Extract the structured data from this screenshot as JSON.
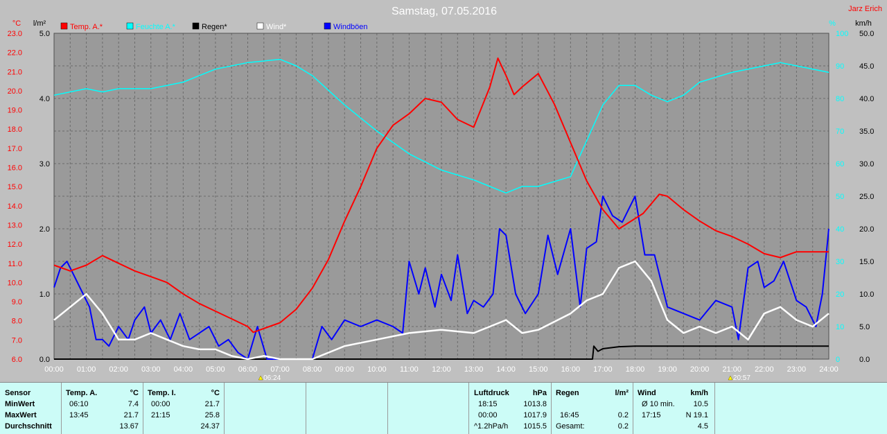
{
  "title": "Samstag, 07.05.2016",
  "author": "Jarz Erich",
  "units": {
    "left1": "°C",
    "left2": "l/m²",
    "right1": "%",
    "right2": "km/h"
  },
  "legend": [
    {
      "label": "Temp. A.*",
      "color": "#ff0000"
    },
    {
      "label": "Feuchte A.*",
      "color": "#00ffff"
    },
    {
      "label": "Regen*",
      "color": "#000000"
    },
    {
      "label": "Wind*",
      "color": "#ffffff"
    },
    {
      "label": "Windböen",
      "color": "#0000ff"
    }
  ],
  "markers": {
    "sunrise": "06:24",
    "sunset": "20:57"
  },
  "chart_data": {
    "type": "line",
    "title": "Samstag, 07.05.2016",
    "x_ticks": [
      "00:00",
      "01:00",
      "02:00",
      "03:00",
      "04:00",
      "05:00",
      "06:00",
      "07:00",
      "08:00",
      "09:00",
      "10:00",
      "11:00",
      "12:00",
      "13:00",
      "14:00",
      "15:00",
      "16:00",
      "17:00",
      "18:00",
      "19:00",
      "20:00",
      "21:00",
      "22:00",
      "23:00",
      "24:00"
    ],
    "axes": {
      "temp_c": {
        "min": 6.0,
        "max": 23.0,
        "ticks": [
          "23.0",
          "22.0",
          "21.0",
          "20.0",
          "19.0",
          "18.0",
          "17.0",
          "16.0",
          "15.0",
          "14.0",
          "13.0",
          "12.0",
          "11.0",
          "10.0",
          "9.0",
          "8.0",
          "7.0",
          "6.0"
        ]
      },
      "rain_lm2": {
        "min": 0,
        "max": 5,
        "ticks": [
          "5.0",
          "4.0",
          "3.0",
          "2.0",
          "1.0",
          "0.0"
        ]
      },
      "humidity_pct": {
        "min": 0,
        "max": 100,
        "ticks": [
          "100",
          "90",
          "80",
          "70",
          "60",
          "50",
          "40",
          "30",
          "20",
          "10",
          "0"
        ]
      },
      "wind_kmh": {
        "min": 0,
        "max": 50,
        "ticks": [
          "50.0",
          "45.0",
          "40.0",
          "35.0",
          "30.0",
          "25.0",
          "20.0",
          "15.0",
          "10.0",
          "5.0",
          "0.0"
        ]
      }
    },
    "grid": true,
    "series": [
      {
        "name": "Temp. A.*",
        "axis": "temp_c",
        "color": "#ff0000",
        "points": [
          [
            0,
            10.9
          ],
          [
            0.5,
            10.6
          ],
          [
            1,
            10.9
          ],
          [
            1.5,
            11.4
          ],
          [
            2,
            11.0
          ],
          [
            2.5,
            10.6
          ],
          [
            3,
            10.3
          ],
          [
            3.5,
            10.0
          ],
          [
            4,
            9.4
          ],
          [
            4.5,
            8.9
          ],
          [
            5,
            8.5
          ],
          [
            5.5,
            8.1
          ],
          [
            6,
            7.7
          ],
          [
            6.17,
            7.4
          ],
          [
            6.5,
            7.6
          ],
          [
            7,
            7.9
          ],
          [
            7.5,
            8.6
          ],
          [
            8,
            9.7
          ],
          [
            8.5,
            11.2
          ],
          [
            9,
            13.2
          ],
          [
            9.5,
            15.0
          ],
          [
            10,
            17.0
          ],
          [
            10.5,
            18.2
          ],
          [
            11,
            18.8
          ],
          [
            11.5,
            19.6
          ],
          [
            12,
            19.4
          ],
          [
            12.5,
            18.5
          ],
          [
            13,
            18.1
          ],
          [
            13.5,
            20.2
          ],
          [
            13.75,
            21.7
          ],
          [
            14,
            20.8
          ],
          [
            14.25,
            19.8
          ],
          [
            14.5,
            20.2
          ],
          [
            15,
            20.9
          ],
          [
            15.25,
            20.1
          ],
          [
            15.5,
            19.3
          ],
          [
            16,
            17.3
          ],
          [
            16.5,
            15.3
          ],
          [
            17,
            13.8
          ],
          [
            17.5,
            12.8
          ],
          [
            18.25,
            13.6
          ],
          [
            18.75,
            14.6
          ],
          [
            19,
            14.5
          ],
          [
            19.5,
            13.8
          ],
          [
            20,
            13.2
          ],
          [
            20.5,
            12.7
          ],
          [
            21,
            12.4
          ],
          [
            21.5,
            12.0
          ],
          [
            22,
            11.5
          ],
          [
            22.5,
            11.3
          ],
          [
            23,
            11.6
          ],
          [
            24,
            11.6
          ]
        ]
      },
      {
        "name": "Feuchte A.*",
        "axis": "humidity_pct",
        "color": "#00ffff",
        "points": [
          [
            0,
            81
          ],
          [
            1,
            83
          ],
          [
            1.5,
            82
          ],
          [
            2,
            83
          ],
          [
            3,
            83
          ],
          [
            4,
            85
          ],
          [
            4.5,
            87
          ],
          [
            5,
            89
          ],
          [
            6,
            91
          ],
          [
            7,
            92
          ],
          [
            7.5,
            90
          ],
          [
            8,
            87
          ],
          [
            9,
            78
          ],
          [
            10,
            70
          ],
          [
            11,
            63
          ],
          [
            12,
            58
          ],
          [
            13,
            55
          ],
          [
            14,
            51
          ],
          [
            14.5,
            53
          ],
          [
            15,
            53
          ],
          [
            16,
            56
          ],
          [
            16.5,
            67
          ],
          [
            17,
            78
          ],
          [
            17.5,
            84
          ],
          [
            18,
            84
          ],
          [
            18.5,
            81
          ],
          [
            19,
            79
          ],
          [
            19.5,
            81
          ],
          [
            20,
            85
          ],
          [
            21,
            88
          ],
          [
            22,
            90
          ],
          [
            22.5,
            91
          ],
          [
            23,
            90
          ],
          [
            24,
            88
          ]
        ]
      },
      {
        "name": "Regen*",
        "axis": "rain_lm2",
        "color": "#000000",
        "points": [
          [
            0,
            0
          ],
          [
            16.68,
            0
          ],
          [
            16.72,
            0.2
          ],
          [
            16.85,
            0.12
          ],
          [
            17,
            0.16
          ],
          [
            17.5,
            0.19
          ],
          [
            18,
            0.2
          ],
          [
            24,
            0.2
          ]
        ]
      },
      {
        "name": "Wind*",
        "axis": "wind_kmh",
        "color": "#ffffff",
        "points": [
          [
            0,
            6
          ],
          [
            0.5,
            8
          ],
          [
            1,
            10
          ],
          [
            1.5,
            7
          ],
          [
            2,
            3
          ],
          [
            2.5,
            3
          ],
          [
            3,
            4
          ],
          [
            3.5,
            3
          ],
          [
            4,
            2
          ],
          [
            4.5,
            1.5
          ],
          [
            5,
            1.5
          ],
          [
            5.5,
            0.5
          ],
          [
            6,
            0
          ],
          [
            6.5,
            0.5
          ],
          [
            7,
            0
          ],
          [
            8,
            0
          ],
          [
            8.5,
            1
          ],
          [
            9,
            2
          ],
          [
            10,
            3
          ],
          [
            11,
            4
          ],
          [
            12,
            4.5
          ],
          [
            13,
            4
          ],
          [
            14,
            6
          ],
          [
            14.5,
            4
          ],
          [
            15,
            4.5
          ],
          [
            16,
            7
          ],
          [
            16.5,
            9
          ],
          [
            17,
            10
          ],
          [
            17.5,
            14
          ],
          [
            18,
            15
          ],
          [
            18.5,
            12
          ],
          [
            19,
            6
          ],
          [
            19.5,
            4
          ],
          [
            20,
            5
          ],
          [
            20.5,
            4
          ],
          [
            21,
            5
          ],
          [
            21.5,
            3
          ],
          [
            22,
            7
          ],
          [
            22.5,
            8
          ],
          [
            23,
            6
          ],
          [
            23.5,
            5
          ],
          [
            24,
            7
          ]
        ]
      },
      {
        "name": "Windböen",
        "axis": "wind_kmh",
        "color": "#0000ff",
        "points": [
          [
            0,
            11
          ],
          [
            0.2,
            14
          ],
          [
            0.4,
            15
          ],
          [
            0.6,
            13
          ],
          [
            0.9,
            10
          ],
          [
            1.1,
            8
          ],
          [
            1.3,
            3
          ],
          [
            1.5,
            3
          ],
          [
            1.7,
            2
          ],
          [
            2,
            5
          ],
          [
            2.3,
            3
          ],
          [
            2.5,
            6
          ],
          [
            2.8,
            8
          ],
          [
            3,
            4
          ],
          [
            3.3,
            6
          ],
          [
            3.6,
            3
          ],
          [
            3.9,
            7
          ],
          [
            4.2,
            3
          ],
          [
            4.5,
            4
          ],
          [
            4.8,
            5
          ],
          [
            5.1,
            2
          ],
          [
            5.4,
            3
          ],
          [
            5.7,
            1
          ],
          [
            6,
            0
          ],
          [
            6.3,
            5
          ],
          [
            6.6,
            0
          ],
          [
            7,
            0
          ],
          [
            8,
            0
          ],
          [
            8.3,
            5
          ],
          [
            8.6,
            3
          ],
          [
            9,
            6
          ],
          [
            9.5,
            5
          ],
          [
            10,
            6
          ],
          [
            10.5,
            5
          ],
          [
            10.8,
            4
          ],
          [
            11,
            15
          ],
          [
            11.3,
            10
          ],
          [
            11.5,
            14
          ],
          [
            11.8,
            8
          ],
          [
            12,
            13
          ],
          [
            12.3,
            9
          ],
          [
            12.5,
            16
          ],
          [
            12.8,
            7
          ],
          [
            13,
            9
          ],
          [
            13.3,
            8
          ],
          [
            13.6,
            10
          ],
          [
            13.8,
            20
          ],
          [
            14,
            19
          ],
          [
            14.3,
            10
          ],
          [
            14.6,
            7
          ],
          [
            15,
            10
          ],
          [
            15.3,
            19
          ],
          [
            15.6,
            13
          ],
          [
            16,
            20
          ],
          [
            16.3,
            8
          ],
          [
            16.5,
            17
          ],
          [
            16.8,
            18
          ],
          [
            17,
            25
          ],
          [
            17.3,
            22
          ],
          [
            17.6,
            21
          ],
          [
            18,
            25
          ],
          [
            18.3,
            16
          ],
          [
            18.6,
            16
          ],
          [
            19,
            8
          ],
          [
            19.5,
            7
          ],
          [
            20,
            6
          ],
          [
            20.5,
            9
          ],
          [
            21,
            8
          ],
          [
            21.2,
            3
          ],
          [
            21.5,
            14
          ],
          [
            21.8,
            15
          ],
          [
            22,
            11
          ],
          [
            22.3,
            12
          ],
          [
            22.6,
            15
          ],
          [
            23,
            9
          ],
          [
            23.3,
            8
          ],
          [
            23.6,
            5
          ],
          [
            23.8,
            10
          ],
          [
            24,
            20
          ]
        ]
      }
    ]
  },
  "stats": {
    "headers": {
      "sensor": "Sensor",
      "temp_a": "Temp. A.",
      "temp_a_unit": "°C",
      "temp_i": "Temp. I.",
      "temp_i_unit": "°C",
      "luft": "Luftdruck",
      "luft_unit": "hPa",
      "regen": "Regen",
      "regen_unit": "l/m²",
      "wind": "Wind",
      "wind_unit": "km/h"
    },
    "rows": [
      {
        "label": "MinWert",
        "ta_time": "06:10",
        "ta_val": "7.4",
        "ti_time": "00:00",
        "ti_val": "21.7",
        "lp_time": "18:15",
        "lp_val": "1013.8",
        "rg_time": "",
        "rg_val": "",
        "wd_time": "Ø 10 min.",
        "wd_val": "10.5"
      },
      {
        "label": "MaxWert",
        "ta_time": "13:45",
        "ta_val": "21.7",
        "ti_time": "21:15",
        "ti_val": "25.8",
        "lp_time": "00:00",
        "lp_val": "1017.9",
        "rg_time": "16:45",
        "rg_val": "0.2",
        "wd_time": "17:15",
        "wd_val": "N 19.1"
      },
      {
        "label": "Durchschnitt",
        "ta_time": "",
        "ta_val": "13.67",
        "ti_time": "",
        "ti_val": "24.37",
        "lp_time": "^1.2hPa/h",
        "lp_val": "1015.5",
        "rg_time": "Gesamt:",
        "rg_val": "0.2",
        "wd_time": "",
        "wd_val": "4.5"
      }
    ]
  }
}
